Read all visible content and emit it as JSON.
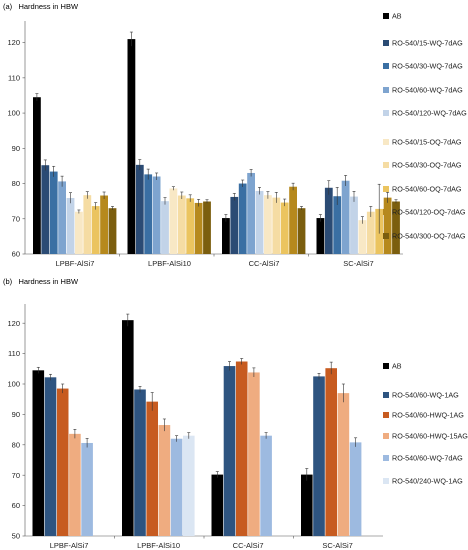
{
  "chart_data": [
    {
      "type": "bar",
      "panel_label": "(a)",
      "title": "Hardness in HBW",
      "categories": [
        "LPBF-AlSi7",
        "LPBF-AlSi10",
        "CC-AlSi7",
        "SC-AlSi7"
      ],
      "ylim": [
        60,
        125
      ],
      "yticks": [
        60,
        70,
        80,
        90,
        100,
        110,
        120
      ],
      "grid": false,
      "legend_position": "right",
      "series": [
        {
          "name": "AB",
          "color": "#000000",
          "values": [
            104.5,
            121,
            70.2,
            70.2
          ],
          "errors": [
            1.0,
            2.0,
            1.0,
            1.0
          ]
        },
        {
          "name": "RO-540/15-WQ-7dAG",
          "color": "#2b4b74",
          "values": [
            85.2,
            85.3,
            76.2,
            78.8
          ],
          "errors": [
            1.5,
            1.5,
            1.0,
            2.0
          ]
        },
        {
          "name": "RO-540/30-WQ-7dAG",
          "color": "#3a6fa3",
          "values": [
            83.4,
            82.6,
            80.0,
            76.4
          ],
          "errors": [
            1.5,
            1.5,
            1.0,
            2.5
          ]
        },
        {
          "name": "RO-540/60-WQ-7dAG",
          "color": "#7ea4cf",
          "values": [
            80.6,
            82.0,
            83.0,
            80.8
          ],
          "errors": [
            1.5,
            1.0,
            1.0,
            1.5
          ]
        },
        {
          "name": "RO-540/120-WQ-7dAG",
          "color": "#c2d3e8",
          "values": [
            75.9,
            75.0,
            77.9,
            76.3
          ],
          "errors": [
            1.5,
            1.0,
            1.0,
            1.5
          ]
        },
        {
          "name": "RO-540/15-OQ-7dAG",
          "color": "#f8e8c5",
          "values": [
            72.0,
            78.6,
            76.7,
            69.6
          ],
          "errors": [
            0.5,
            0.5,
            1.0,
            1.0
          ]
        },
        {
          "name": "RO-540/30-OQ-7dAG",
          "color": "#f5dca3",
          "values": [
            76.7,
            76.6,
            76.0,
            72.0
          ],
          "errors": [
            1.0,
            1.0,
            1.5,
            1.5
          ]
        },
        {
          "name": "RO-540/60-OQ-7dAG",
          "color": "#ebc45f",
          "values": [
            73.6,
            75.8,
            74.6,
            72.8
          ],
          "errors": [
            1.0,
            1.0,
            1.0,
            7.0
          ]
        },
        {
          "name": "RO-540/120-OQ-7dAG",
          "color": "#b6891d",
          "values": [
            76.6,
            74.5,
            79.1,
            76.0
          ],
          "errors": [
            1.0,
            1.0,
            1.0,
            1.5
          ]
        },
        {
          "name": "RO-540/300-OQ-7dAG",
          "color": "#7b5e0e",
          "values": [
            73.0,
            74.9,
            73.0,
            74.9
          ],
          "errors": [
            0.5,
            0.5,
            0.5,
            0.5
          ]
        }
      ]
    },
    {
      "type": "bar",
      "panel_label": "(b)",
      "title": "Hardness in HBW",
      "categories": [
        "LPBF-AlSi7",
        "LPBF-AlSi10",
        "CC-AlSi7",
        "SC-AlSi7"
      ],
      "ylim": [
        50,
        125
      ],
      "yticks": [
        50,
        60,
        70,
        80,
        90,
        100,
        110,
        120
      ],
      "grid": false,
      "legend_position": "right",
      "series": [
        {
          "name": "AB",
          "color": "#000000",
          "values": [
            104.5,
            121.0,
            70.2,
            70.2
          ],
          "errors": [
            1.0,
            2.0,
            1.0,
            2.0
          ]
        },
        {
          "name": "RO-540/60-WQ-1AG",
          "color": "#2e5480",
          "values": [
            102.2,
            98.2,
            105.9,
            102.5
          ],
          "errors": [
            1.0,
            1.0,
            1.5,
            1.0
          ]
        },
        {
          "name": "RO-540/60-HWQ-1AG",
          "color": "#c75b20",
          "values": [
            98.5,
            94.2,
            107.4,
            105.2
          ],
          "errors": [
            1.5,
            3.0,
            1.0,
            2.0
          ]
        },
        {
          "name": "RO-540/60-HWQ-15AG",
          "color": "#efac80",
          "values": [
            83.6,
            86.5,
            103.8,
            97.0
          ],
          "errors": [
            1.5,
            2.0,
            1.5,
            3.0
          ]
        },
        {
          "name": "RO-540/60-WQ-7dAG",
          "color": "#9dbae0",
          "values": [
            80.6,
            82.0,
            83.0,
            80.8
          ],
          "errors": [
            1.5,
            1.0,
            1.0,
            1.5
          ]
        },
        {
          "name": "RO-540/240-WQ-1AG",
          "color": "#dbe6f3",
          "values": [
            null,
            83.0,
            null,
            null
          ],
          "errors": [
            null,
            1.0,
            null,
            null
          ]
        }
      ]
    }
  ]
}
